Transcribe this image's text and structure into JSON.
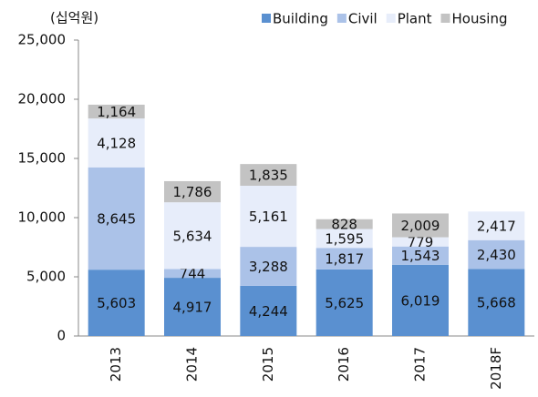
{
  "chart_data": {
    "type": "stacked_bar",
    "unit_label": "(십억원)",
    "categories": [
      "2013",
      "2014",
      "2015",
      "2016",
      "2017",
      "2018F"
    ],
    "series": [
      {
        "name": "Building",
        "color": "#5a90d0",
        "values": [
          5603,
          4917,
          4244,
          5625,
          6019,
          5668
        ],
        "value_labels": [
          "5,603",
          "4,917",
          "4,244",
          "5,625",
          "6,019",
          "5,668"
        ]
      },
      {
        "name": "Civil",
        "color": "#abc2e8",
        "values": [
          8645,
          744,
          3288,
          1817,
          1543,
          2430
        ],
        "value_labels": [
          "8,645",
          "744",
          "3,288",
          "1,817",
          "1,543",
          "2,430"
        ]
      },
      {
        "name": "Plant",
        "color": "#e7edfa",
        "values": [
          4128,
          5634,
          5161,
          1595,
          779,
          2417
        ],
        "value_labels": [
          "4,128",
          "5,634",
          "5,161",
          "1,595",
          "779",
          "2,417"
        ]
      },
      {
        "name": "Housing",
        "color": "#c3c3c3",
        "values": [
          1164,
          1786,
          1835,
          828,
          2009,
          null
        ],
        "value_labels": [
          "1,164",
          "1,786",
          "1,835",
          "828",
          "2,009",
          null
        ]
      }
    ],
    "ylim": [
      0,
      25000
    ],
    "yticks": [
      0,
      {
        "value": 5000,
        "label": "5,000"
      },
      {
        "value": 10000,
        "label": "10,000"
      },
      {
        "value": 15000,
        "label": "15,000"
      },
      {
        "value": 20000,
        "label": "20,000"
      },
      {
        "value": 25000,
        "label": "25,000"
      }
    ],
    "legend": "top-right"
  }
}
